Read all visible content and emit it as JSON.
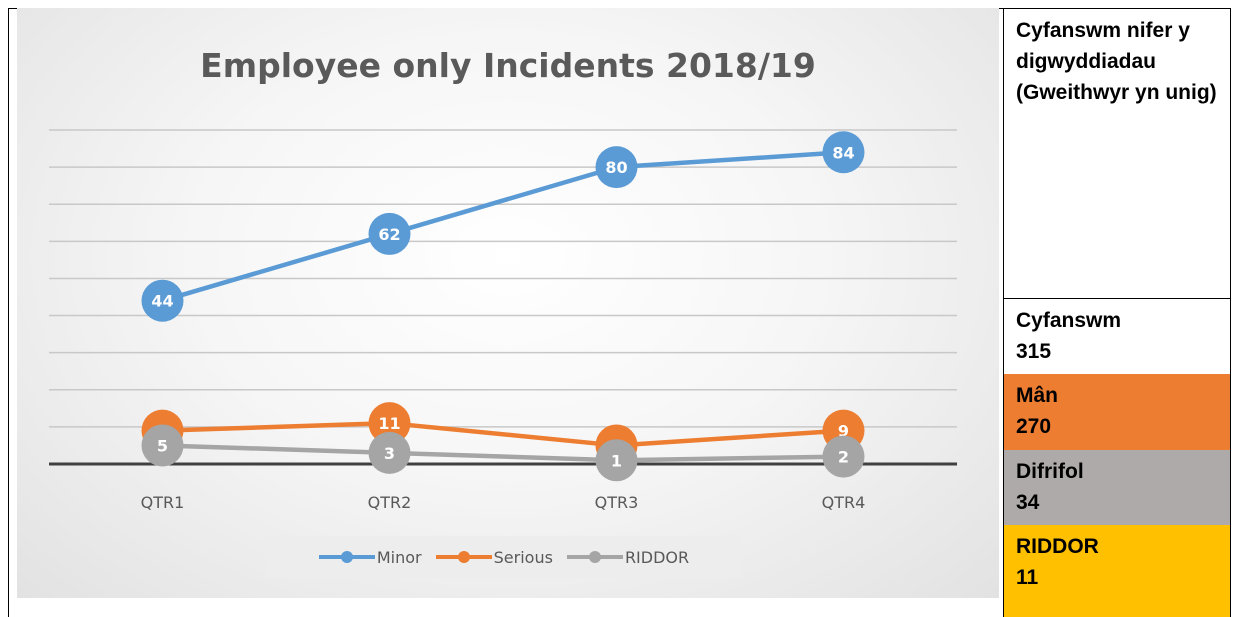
{
  "chart_data": {
    "type": "line",
    "title": "Employee only Incidents 2018/19",
    "categories": [
      "QTR1",
      "QTR2",
      "QTR3",
      "QTR4"
    ],
    "series": [
      {
        "name": "Minor",
        "values": [
          44,
          62,
          80,
          84
        ],
        "color": "#5b9bd5"
      },
      {
        "name": "Serious",
        "values": [
          9,
          11,
          5,
          9
        ],
        "color": "#ed7d31"
      },
      {
        "name": "RIDDOR",
        "values": [
          5,
          3,
          1,
          2
        ],
        "color": "#a5a5a5"
      }
    ],
    "ylim": [
      0,
      90
    ],
    "grid": true,
    "data_labels": true,
    "legend_position": "bottom"
  },
  "side_table": {
    "heading": "Cyfanswm nifer y digwyddiadau (Gweithwyr yn unig)",
    "rows": [
      {
        "label": "Cyfanswm",
        "value": "315",
        "bg": "#ffffff"
      },
      {
        "label": "Mân",
        "value": "270",
        "bg": "#ed7d31"
      },
      {
        "label": "Difrifol",
        "value": "34",
        "bg": "#aeaaaa"
      },
      {
        "label": "RIDDOR",
        "value": "11",
        "bg": "#ffc000"
      }
    ]
  }
}
